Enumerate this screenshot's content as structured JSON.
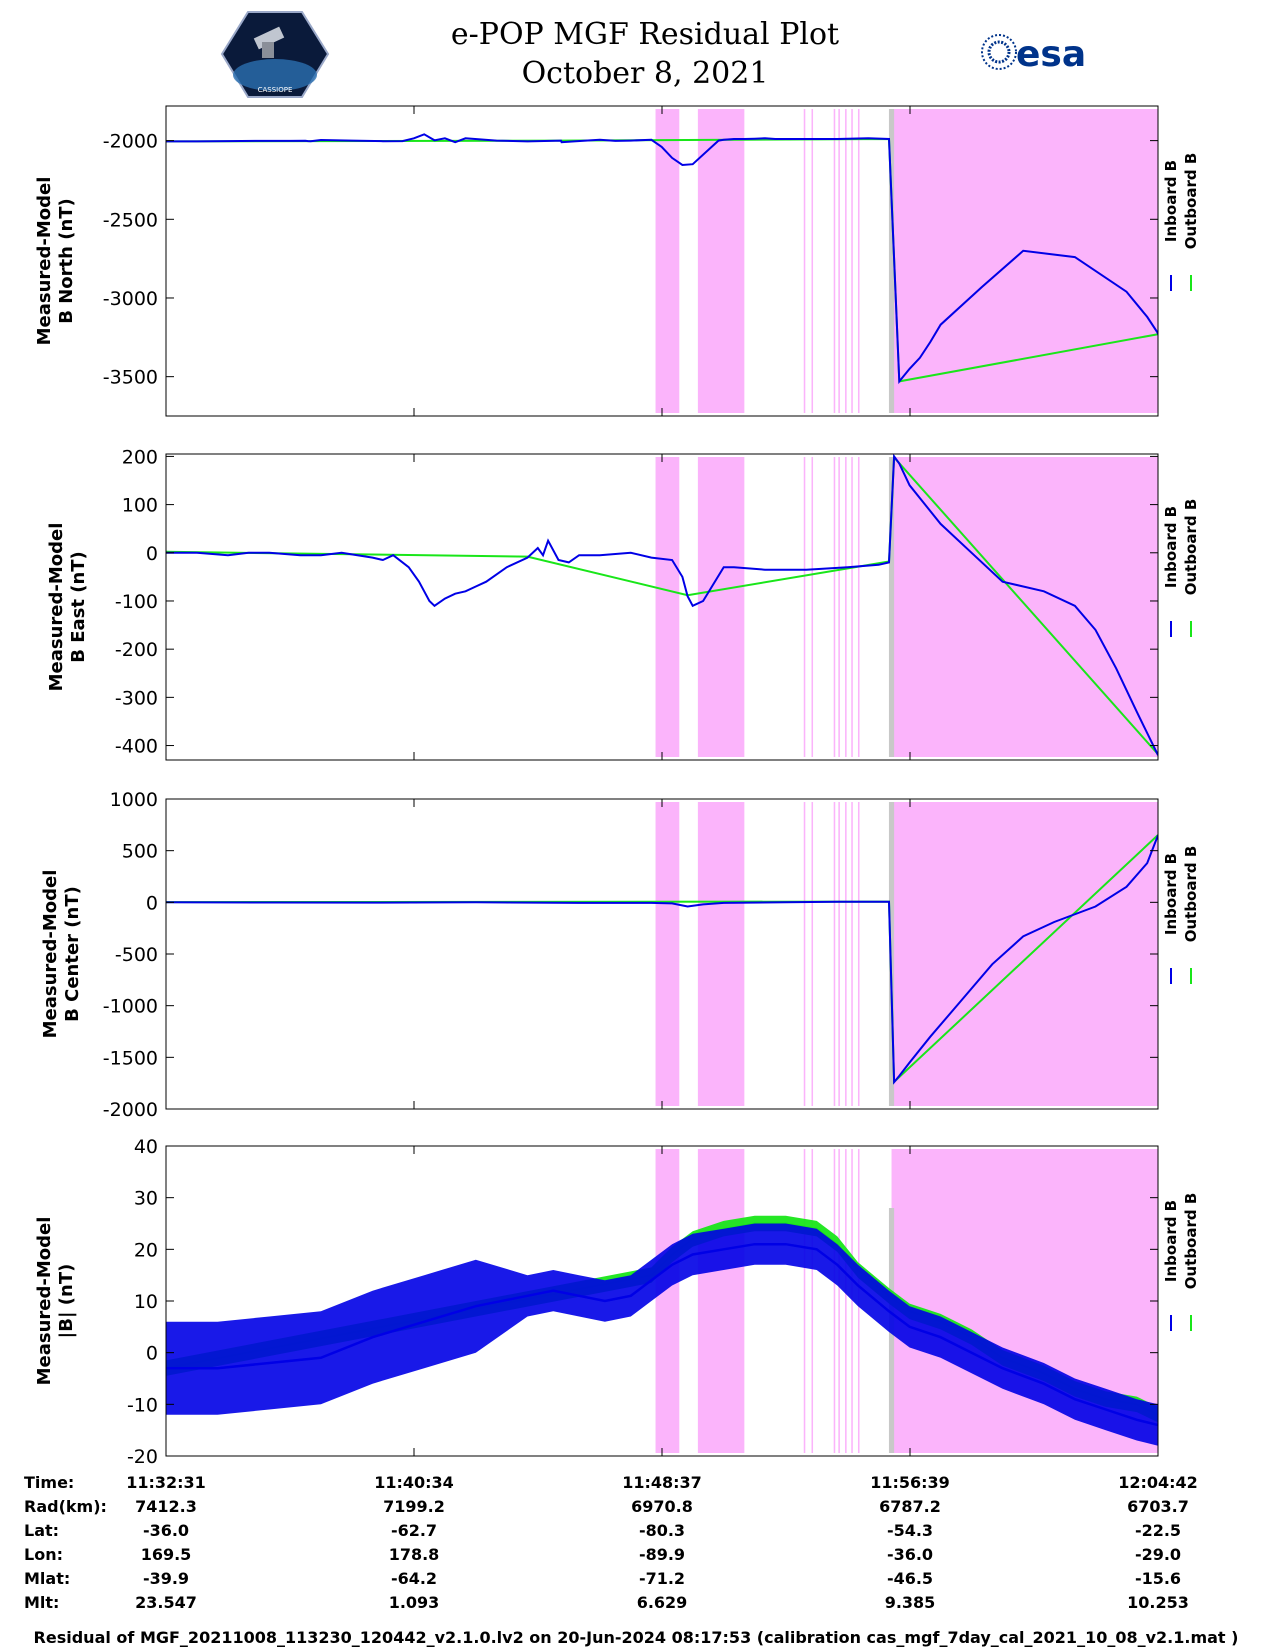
{
  "header": {
    "title_line1": "e-POP MGF Residual Plot",
    "title_line2": "October 8, 2021",
    "esa_logo_text": "esa",
    "mission_logo": "cassiope-satellite-logo",
    "mission_logo_text": "CASSIOPE"
  },
  "colors": {
    "inboard": "#0000e6",
    "outboard": "#19e619",
    "shade_pink": "#fbb4fb",
    "shade_gray": "#c8c8c8",
    "esa_blue": "#00338a"
  },
  "chart_data": [
    {
      "type": "line",
      "ylabel": [
        "Measured-Model",
        "B North (nT)"
      ],
      "ylim": [
        -3750,
        -1780
      ],
      "yticks": [
        -2000,
        -2500,
        -3000,
        -3500
      ],
      "ytick_labels": [
        "-2000",
        "-2500",
        "-3000",
        "-3500"
      ],
      "legend": [
        "Inboard B",
        "Outboard B"
      ],
      "series": [
        {
          "name": "Inboard B",
          "x": [
            0,
            60,
            120,
            180,
            240,
            270,
            275,
            280,
            300,
            360,
            420,
            458,
            480,
            500,
            520,
            540,
            560,
            580,
            640,
            700,
            765,
            766,
            790,
            840,
            870,
            900,
            940,
            960,
            980,
            1000,
            1020,
            1070,
            1080,
            1090,
            1100,
            1120,
            1140,
            1160,
            1180,
            1200,
            1250,
            1300,
            1360,
            1400,
            1420,
            1440,
            1460,
            1480,
            1500,
            1580,
            1660,
            1760,
            1860,
            1900,
            1920,
            1921
          ],
          "y": [
            -2005,
            -2005,
            -2003,
            -2002,
            -2002,
            -2001,
            -2003,
            -2004,
            -1996,
            -2000,
            -2004,
            -2003,
            -1985,
            -1960,
            -1998,
            -1985,
            -2010,
            -1985,
            -2000,
            -2005,
            -2000,
            -2010,
            -2005,
            -1995,
            -2002,
            -2000,
            -1995,
            -2040,
            -2110,
            -2155,
            -2150,
            -2000,
            -1995,
            -1992,
            -1990,
            -1990,
            -1988,
            -1985,
            -1990,
            -1990,
            -1990,
            -1990,
            -1985,
            -1990,
            -3530,
            -3450,
            -3380,
            -3280,
            -3170,
            -2930,
            -2700,
            -2740,
            -2960,
            -3120,
            -3220,
            -3230
          ]
        },
        {
          "name": "Outboard B",
          "x": [
            0,
            765,
            1400,
            1420,
            1921
          ],
          "y": [
            -2005,
            -2000,
            -1990,
            -3530,
            -3230
          ]
        }
      ]
    },
    {
      "type": "line",
      "ylabel": [
        "Measured-Model",
        "B East (nT)"
      ],
      "ylim": [
        -430,
        205
      ],
      "yticks": [
        200,
        100,
        0,
        -100,
        -200,
        -300,
        -400
      ],
      "ytick_labels": [
        "200",
        "100",
        "0",
        "-100",
        "-200",
        "-300",
        "-400"
      ],
      "legend": [
        "Inboard B",
        "Outboard B"
      ],
      "series": [
        {
          "name": "Inboard B",
          "x": [
            0,
            60,
            120,
            160,
            200,
            260,
            300,
            340,
            400,
            420,
            440,
            470,
            490,
            500,
            510,
            520,
            540,
            560,
            580,
            600,
            620,
            660,
            700,
            720,
            730,
            740,
            760,
            780,
            800,
            840,
            900,
            940,
            980,
            1000,
            1010,
            1020,
            1040,
            1080,
            1100,
            1160,
            1240,
            1320,
            1380,
            1400,
            1410,
            1420,
            1440,
            1500,
            1560,
            1620,
            1700,
            1760,
            1800,
            1840,
            1880,
            1921
          ],
          "y": [
            0,
            0,
            -5,
            0,
            0,
            -5,
            -5,
            0,
            -10,
            -15,
            -5,
            -30,
            -60,
            -80,
            -100,
            -110,
            -95,
            -85,
            -80,
            -70,
            -60,
            -30,
            -10,
            10,
            -5,
            25,
            -15,
            -20,
            -5,
            -5,
            0,
            -10,
            -15,
            -50,
            -90,
            -110,
            -100,
            -30,
            -30,
            -35,
            -35,
            -30,
            -25,
            -20,
            200,
            185,
            140,
            60,
            0,
            -60,
            -80,
            -110,
            -160,
            -240,
            -330,
            -420
          ]
        },
        {
          "name": "Outboard B",
          "x": [
            0,
            700,
            1010,
            1400,
            1410,
            1921
          ],
          "y": [
            2,
            -8,
            -88,
            -18,
            198,
            -418
          ]
        }
      ]
    },
    {
      "type": "line",
      "ylabel": [
        "Measured-Model",
        "B Center (nT)"
      ],
      "ylim": [
        -2000,
        1000
      ],
      "yticks": [
        1000,
        500,
        0,
        -500,
        -1000,
        -1500,
        -2000
      ],
      "ytick_labels": [
        "1000",
        "500",
        "0",
        "-500",
        "-1000",
        "-1500",
        "-2000"
      ],
      "legend": [
        "Inboard B",
        "Outboard B"
      ],
      "series": [
        {
          "name": "Inboard B",
          "x": [
            0,
            200,
            400,
            600,
            800,
            940,
            980,
            1010,
            1040,
            1080,
            1200,
            1300,
            1400,
            1410,
            1420,
            1440,
            1480,
            1540,
            1600,
            1660,
            1720,
            1800,
            1860,
            1900,
            1921
          ],
          "y": [
            0,
            -2,
            -3,
            0,
            -5,
            -5,
            -10,
            -40,
            -20,
            -5,
            0,
            5,
            5,
            -1740,
            -1680,
            -1550,
            -1300,
            -950,
            -600,
            -330,
            -190,
            -40,
            150,
            380,
            650
          ]
        },
        {
          "name": "Outboard B",
          "x": [
            0,
            1400,
            1410,
            1921
          ],
          "y": [
            2,
            7,
            -1738,
            652
          ]
        }
      ]
    },
    {
      "type": "line",
      "ylabel": [
        "Measured-Model",
        "|B| (nT)"
      ],
      "ylim": [
        -20,
        40
      ],
      "yticks": [
        40,
        30,
        20,
        10,
        0,
        -10,
        -20
      ],
      "ytick_labels": [
        "40",
        "30",
        "20",
        "10",
        "0",
        "-10",
        "-20"
      ],
      "legend": [
        "Inboard B",
        "Outboard B"
      ],
      "series": [
        {
          "name": "Inboard B",
          "x": [
            0,
            100,
            200,
            300,
            400,
            500,
            600,
            700,
            750,
            800,
            850,
            900,
            940,
            980,
            1020,
            1080,
            1140,
            1200,
            1260,
            1300,
            1340,
            1400,
            1440,
            1500,
            1560,
            1620,
            1700,
            1760,
            1820,
            1880,
            1921
          ],
          "y": [
            -3,
            -3,
            -2,
            -1,
            3,
            6,
            9,
            11,
            12,
            11,
            10,
            11,
            14,
            17,
            19,
            20,
            21,
            21,
            20,
            17,
            13,
            8,
            5,
            3,
            0,
            -3,
            -6,
            -9,
            -11,
            -13,
            -14
          ]
        },
        {
          "name": "Outboard B",
          "x": [
            0,
            940,
            980,
            1020,
            1080,
            1140,
            1200,
            1260,
            1300,
            1340,
            1400,
            1440,
            1500,
            1560,
            1620,
            1700,
            1760,
            1820,
            1880,
            1921
          ],
          "y": [
            -3,
            15,
            19,
            22,
            24,
            25,
            25,
            24,
            21,
            16,
            11,
            8,
            6,
            3,
            -1,
            -4,
            -7,
            -9,
            -10,
            -12
          ]
        }
      ]
    }
  ],
  "shading": {
    "x_range": [
      0,
      1921
    ],
    "pink_bands": [
      [
        948,
        994
      ],
      [
        1030,
        1120
      ],
      [
        1235,
        1238
      ],
      [
        1250,
        1253
      ],
      [
        1293,
        1296
      ],
      [
        1302,
        1305
      ],
      [
        1315,
        1318
      ],
      [
        1327,
        1330
      ],
      [
        1340,
        1343
      ],
      [
        1405,
        1921
      ]
    ],
    "gray_bands": [
      [
        1400,
        1410
      ]
    ]
  },
  "xticks": [
    "11:32:31",
    "11:40:34",
    "11:48:37",
    "11:56:39",
    "12:04:42"
  ],
  "info_table": {
    "labels": [
      "Time:",
      "Rad(km):",
      "Lat:",
      "Lon:",
      "Mlat:",
      "Mlt:"
    ],
    "columns": [
      [
        "11:32:31",
        "7412.3",
        "-36.0",
        "169.5",
        "-39.9",
        "23.547"
      ],
      [
        "11:40:34",
        "7199.2",
        "-62.7",
        "178.8",
        "-64.2",
        "1.093"
      ],
      [
        "11:48:37",
        "6970.8",
        "-80.3",
        "-89.9",
        "-71.2",
        "6.629"
      ],
      [
        "11:56:39",
        "6787.2",
        "-54.3",
        "-36.0",
        "-46.5",
        "9.385"
      ],
      [
        "12:04:42",
        "6703.7",
        "-22.5",
        "-29.0",
        "-15.6",
        "10.253"
      ]
    ]
  },
  "footer": "Residual of MGF_20211008_113230_120442_v2.1.0.lv2 on 20-Jun-2024 08:17:53 (calibration cas_mgf_7day_cal_2021_10_08_v2.1.mat )"
}
